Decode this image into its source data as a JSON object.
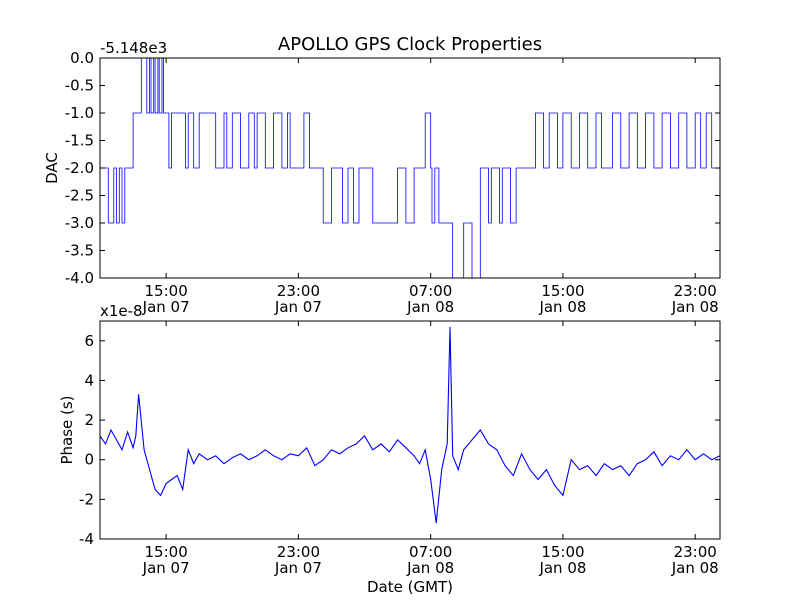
{
  "figure": {
    "title": "APOLLO GPS Clock Properties",
    "xlabel": "Date (GMT)"
  },
  "chart_data": [
    {
      "type": "line",
      "ylabel": "DAC",
      "offset_label": "-5.148e3",
      "ylim": [
        -4.0,
        0.0
      ],
      "yticks": [
        0.0,
        -0.5,
        -1.0,
        -1.5,
        -2.0,
        -2.5,
        -3.0,
        -3.5,
        -4.0
      ],
      "ytick_labels": [
        "0.0",
        "-0.5",
        "-1.0",
        "-1.5",
        "-2.0",
        "-2.5",
        "-3.0",
        "-3.5",
        "-4.0"
      ],
      "xlim": [
        "Jan 07 11:00",
        "Jan 09 00:30"
      ],
      "xticks": [
        {
          "x": "Jan 07 15:00",
          "time": "15:00",
          "date": "Jan 07"
        },
        {
          "x": "Jan 07 23:00",
          "time": "23:00",
          "date": "Jan 07"
        },
        {
          "x": "Jan 08 07:00",
          "time": "07:00",
          "date": "Jan 08"
        },
        {
          "x": "Jan 08 15:00",
          "time": "15:00",
          "date": "Jan 08"
        },
        {
          "x": "Jan 08 23:00",
          "time": "23:00",
          "date": "Jan 08"
        }
      ],
      "color": "#0000ff",
      "series": [
        {
          "x": [
            "Jan 07 11:00",
            "Jan 07 11:30",
            "Jan 07 11:50",
            "Jan 07 12:00",
            "Jan 07 12:10",
            "Jan 07 12:20",
            "Jan 07 12:30",
            "Jan 07 12:40",
            "Jan 07 13:00",
            "Jan 07 13:30",
            "Jan 07 13:50",
            "Jan 07 14:00",
            "Jan 07 14:05",
            "Jan 07 14:15",
            "Jan 07 14:20",
            "Jan 07 14:30",
            "Jan 07 14:35",
            "Jan 07 14:45",
            "Jan 07 14:50",
            "Jan 07 15:00",
            "Jan 07 15:10",
            "Jan 07 15:20",
            "Jan 07 15:35",
            "Jan 07 16:00",
            "Jan 07 16:10",
            "Jan 07 16:20",
            "Jan 07 16:40",
            "Jan 07 17:00",
            "Jan 07 18:00",
            "Jan 07 18:30",
            "Jan 07 18:40",
            "Jan 07 19:00",
            "Jan 07 19:30",
            "Jan 07 20:00",
            "Jan 07 20:20",
            "Jan 07 20:30",
            "Jan 07 21:00",
            "Jan 07 21:30",
            "Jan 07 22:00",
            "Jan 07 22:20",
            "Jan 07 22:30",
            "Jan 07 23:00",
            "Jan 07 23:20",
            "Jan 07 23:40",
            "Jan 08 00:00",
            "Jan 08 00:30",
            "Jan 08 01:00",
            "Jan 08 01:40",
            "Jan 08 02:00",
            "Jan 08 02:20",
            "Jan 08 02:40",
            "Jan 08 03:00",
            "Jan 08 03:30",
            "Jan 08 04:00",
            "Jan 08 05:00",
            "Jan 08 05:30",
            "Jan 08 06:00",
            "Jan 08 06:40",
            "Jan 08 07:00",
            "Jan 08 07:05",
            "Jan 08 07:15",
            "Jan 08 07:30",
            "Jan 08 08:00",
            "Jan 08 08:20",
            "Jan 08 09:00",
            "Jan 08 09:30",
            "Jan 08 10:00",
            "Jan 08 10:30",
            "Jan 08 10:40",
            "Jan 08 11:10",
            "Jan 08 11:20",
            "Jan 08 11:50",
            "Jan 08 12:10",
            "Jan 08 12:50",
            "Jan 08 13:20",
            "Jan 08 13:50",
            "Jan 08 14:10",
            "Jan 08 14:40",
            "Jan 08 15:00",
            "Jan 08 15:30",
            "Jan 08 16:00",
            "Jan 08 16:30",
            "Jan 08 17:00",
            "Jan 08 17:20",
            "Jan 08 18:00",
            "Jan 08 18:30",
            "Jan 08 19:00",
            "Jan 08 19:30",
            "Jan 08 20:00",
            "Jan 08 20:30",
            "Jan 08 21:00",
            "Jan 08 21:30",
            "Jan 08 22:00",
            "Jan 08 22:30",
            "Jan 08 23:00",
            "Jan 08 23:20",
            "Jan 08 23:40",
            "Jan 09 00:00",
            "Jan 09 00:30"
          ],
          "y": [
            -2,
            -3,
            -2,
            -3,
            -2,
            -3,
            -2,
            -2,
            -1,
            0,
            -1,
            0,
            -1,
            0,
            -1,
            0,
            -1,
            0,
            -1,
            -1,
            -2,
            -1,
            -1,
            -1,
            -2,
            -1,
            -2,
            -1,
            -2,
            -1,
            -2,
            -1,
            -2,
            -1,
            -2,
            -1,
            -2,
            -1,
            -2,
            -1,
            -2,
            -2,
            -1,
            -2,
            -2,
            -3,
            -2,
            -3,
            -2,
            -3,
            -2,
            -2,
            -3,
            -3,
            -2,
            -3,
            -2,
            -1,
            -2,
            -3,
            -2,
            -3,
            -3,
            -4,
            -3,
            -4,
            -2,
            -3,
            -2,
            -3,
            -2,
            -3,
            -2,
            -2,
            -1,
            -2,
            -1,
            -2,
            -1,
            -2,
            -1,
            -2,
            -1,
            -2,
            -1,
            -2,
            -1,
            -2,
            -1,
            -2,
            -1,
            -2,
            -1,
            -2,
            -1,
            -2,
            -1,
            -2,
            -2
          ]
        }
      ]
    },
    {
      "type": "line",
      "ylabel": "Phase (s)",
      "offset_label": "x1e-8",
      "ylim": [
        -4,
        7
      ],
      "yticks": [
        -4,
        -2,
        0,
        2,
        4,
        6
      ],
      "ytick_labels": [
        "-4",
        "-2",
        "0",
        "2",
        "4",
        "6"
      ],
      "xlim": [
        "Jan 07 11:00",
        "Jan 09 00:30"
      ],
      "xticks": [
        {
          "x": "Jan 07 15:00",
          "time": "15:00",
          "date": "Jan 07"
        },
        {
          "x": "Jan 07 23:00",
          "time": "23:00",
          "date": "Jan 07"
        },
        {
          "x": "Jan 08 07:00",
          "time": "07:00",
          "date": "Jan 08"
        },
        {
          "x": "Jan 08 15:00",
          "time": "15:00",
          "date": "Jan 08"
        },
        {
          "x": "Jan 08 23:00",
          "time": "23:00",
          "date": "Jan 08"
        }
      ],
      "color": "#0000ff",
      "series": [
        {
          "x": [
            "Jan 07 11:00",
            "Jan 07 11:20",
            "Jan 07 11:40",
            "Jan 07 12:00",
            "Jan 07 12:20",
            "Jan 07 12:40",
            "Jan 07 13:00",
            "Jan 07 13:10",
            "Jan 07 13:20",
            "Jan 07 13:40",
            "Jan 07 14:00",
            "Jan 07 14:20",
            "Jan 07 14:40",
            "Jan 07 15:00",
            "Jan 07 15:20",
            "Jan 07 15:40",
            "Jan 07 16:00",
            "Jan 07 16:20",
            "Jan 07 16:40",
            "Jan 07 17:00",
            "Jan 07 17:30",
            "Jan 07 18:00",
            "Jan 07 18:30",
            "Jan 07 19:00",
            "Jan 07 19:30",
            "Jan 07 20:00",
            "Jan 07 20:30",
            "Jan 07 21:00",
            "Jan 07 21:30",
            "Jan 07 22:00",
            "Jan 07 22:30",
            "Jan 07 23:00",
            "Jan 07 23:30",
            "Jan 08 00:00",
            "Jan 08 00:30",
            "Jan 08 01:00",
            "Jan 08 01:30",
            "Jan 08 02:00",
            "Jan 08 02:30",
            "Jan 08 03:00",
            "Jan 08 03:30",
            "Jan 08 04:00",
            "Jan 08 04:30",
            "Jan 08 05:00",
            "Jan 08 05:30",
            "Jan 08 06:00",
            "Jan 08 06:20",
            "Jan 08 06:40",
            "Jan 08 07:00",
            "Jan 08 07:20",
            "Jan 08 07:40",
            "Jan 08 08:00",
            "Jan 08 08:10",
            "Jan 08 08:20",
            "Jan 08 08:40",
            "Jan 08 09:00",
            "Jan 08 09:30",
            "Jan 08 10:00",
            "Jan 08 10:30",
            "Jan 08 11:00",
            "Jan 08 11:30",
            "Jan 08 12:00",
            "Jan 08 12:30",
            "Jan 08 13:00",
            "Jan 08 13:30",
            "Jan 08 14:00",
            "Jan 08 14:30",
            "Jan 08 15:00",
            "Jan 08 15:30",
            "Jan 08 16:00",
            "Jan 08 16:30",
            "Jan 08 17:00",
            "Jan 08 17:30",
            "Jan 08 18:00",
            "Jan 08 18:30",
            "Jan 08 19:00",
            "Jan 08 19:30",
            "Jan 08 20:00",
            "Jan 08 20:30",
            "Jan 08 21:00",
            "Jan 08 21:30",
            "Jan 08 22:00",
            "Jan 08 22:30",
            "Jan 08 23:00",
            "Jan 08 23:30",
            "Jan 09 00:00",
            "Jan 09 00:30"
          ],
          "y": [
            1.2,
            0.8,
            1.5,
            1.0,
            0.5,
            1.4,
            0.6,
            1.2,
            3.3,
            0.5,
            -0.5,
            -1.5,
            -1.8,
            -1.2,
            -1.0,
            -0.8,
            -1.5,
            0.5,
            -0.2,
            0.3,
            0.0,
            0.2,
            -0.2,
            0.1,
            0.3,
            0.0,
            0.2,
            0.5,
            0.2,
            0.0,
            0.3,
            0.2,
            0.6,
            -0.3,
            0.0,
            0.5,
            0.3,
            0.6,
            0.8,
            1.2,
            0.5,
            0.8,
            0.4,
            1.0,
            0.6,
            0.2,
            -0.2,
            0.5,
            -1.0,
            -3.2,
            -0.5,
            0.8,
            6.7,
            0.2,
            -0.5,
            0.5,
            1.0,
            1.5,
            0.8,
            0.5,
            -0.3,
            -0.8,
            0.3,
            -0.5,
            -1.0,
            -0.5,
            -1.3,
            -1.8,
            0.0,
            -0.5,
            -0.3,
            -0.8,
            -0.2,
            -0.5,
            -0.3,
            -0.8,
            -0.2,
            0.0,
            0.4,
            -0.3,
            0.2,
            0.0,
            0.5,
            0.0,
            0.3,
            0.0,
            0.2
          ]
        }
      ]
    }
  ]
}
